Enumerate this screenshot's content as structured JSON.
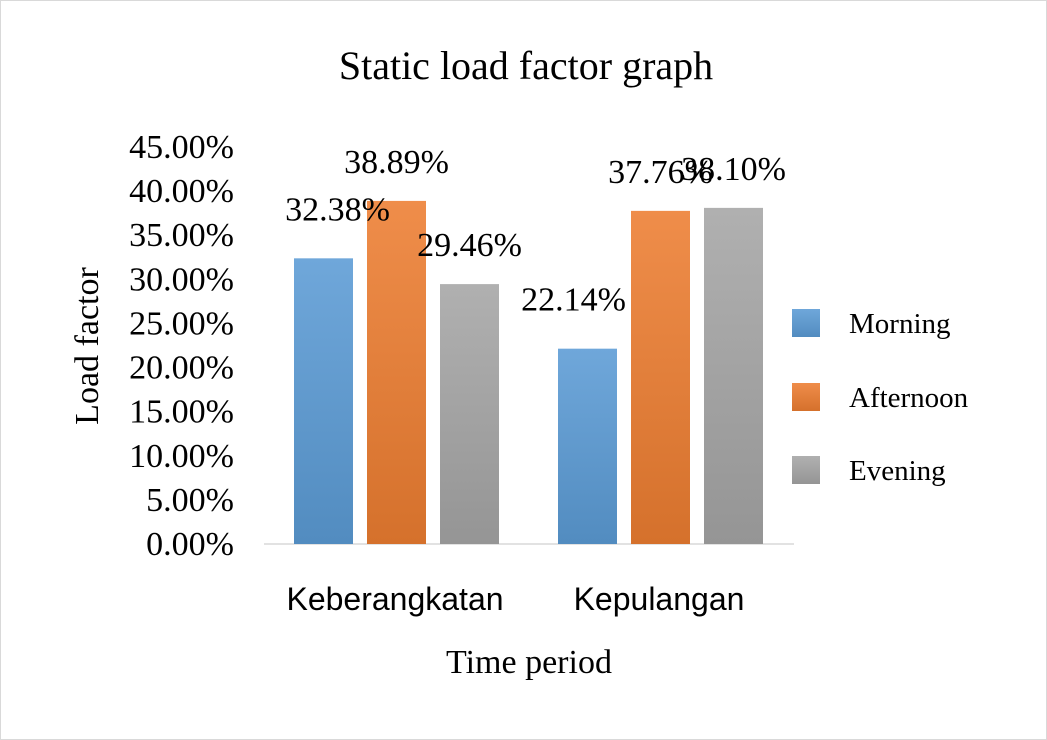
{
  "chart_data": {
    "type": "bar",
    "title": "Static load factor graph",
    "xlabel": "Time period",
    "ylabel": "Load factor",
    "categories": [
      "Keberangkatan",
      "Kepulangan"
    ],
    "series": [
      {
        "name": "Morning",
        "values": [
          32.38,
          22.14
        ],
        "labels": [
          "32.38%",
          "22.14%"
        ],
        "color": "#5b9bd5"
      },
      {
        "name": "Afternoon",
        "values": [
          38.89,
          37.76
        ],
        "labels": [
          "38.89%",
          "37.76%"
        ],
        "color": "#ed7d31"
      },
      {
        "name": "Evening",
        "values": [
          29.46,
          38.1
        ],
        "labels": [
          "29.46%",
          "38.10%"
        ],
        "color": "#a5a5a5"
      }
    ],
    "ylim": [
      0,
      45
    ],
    "yticks": [
      0,
      5,
      10,
      15,
      20,
      25,
      30,
      35,
      40,
      45
    ],
    "ytick_labels": [
      "0.00%",
      "5.00%",
      "10.00%",
      "15.00%",
      "20.00%",
      "25.00%",
      "30.00%",
      "35.00%",
      "40.00%",
      "45.00%"
    ],
    "grid": false,
    "legend": "right"
  }
}
